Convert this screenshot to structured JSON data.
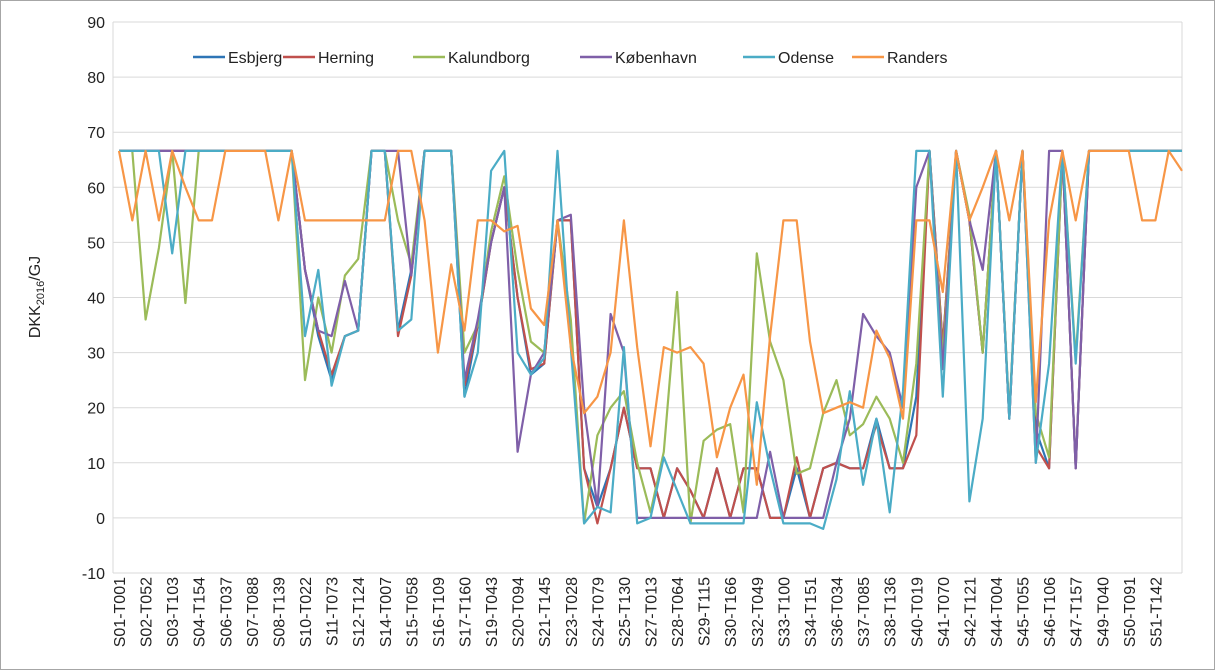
{
  "chart_data": {
    "type": "line",
    "ylabel": {
      "main": "DKK",
      "sub": "2016",
      "suffix": "/GJ"
    },
    "ylim": [
      -10,
      90
    ],
    "yticks": [
      -10,
      0,
      10,
      20,
      30,
      40,
      50,
      60,
      70,
      80,
      90
    ],
    "grid": true,
    "legend": "top",
    "categories": [
      "S01-T001",
      null,
      "S02-T052",
      null,
      "S03-T103",
      null,
      "S04-T154",
      null,
      "S06-T037",
      null,
      "S07-T088",
      null,
      "S08-T139",
      null,
      "S10-T022",
      null,
      "S11-T073",
      null,
      "S12-T124",
      null,
      "S14-T007",
      null,
      "S15-T058",
      null,
      "S16-T109",
      null,
      "S17-T160",
      null,
      "S19-T043",
      null,
      "S20-T094",
      null,
      "S21-T145",
      null,
      "S23-T028",
      null,
      "S24-T079",
      null,
      "S25-T130",
      null,
      "S27-T013",
      null,
      "S28-T064",
      null,
      "S29-T115",
      null,
      "S30-T166",
      null,
      "S32-T049",
      null,
      "S33-T100",
      null,
      "S34-T151",
      null,
      "S36-T034",
      null,
      "S37-T085",
      null,
      "S38-T136",
      null,
      "S40-T019",
      null,
      "S41-T070",
      null,
      "S42-T121",
      null,
      "S44-T004",
      null,
      "S45-T055",
      null,
      "S46-T106",
      null,
      "S47-T157",
      null,
      "S49-T040",
      null,
      "S50-T091",
      null,
      "S51-T142",
      null,
      null
    ],
    "series": [
      {
        "name": "Esbjerg",
        "color": "#2e75b6",
        "values": [
          66.6,
          66.6,
          66.6,
          66.6,
          66.6,
          66.6,
          66.6,
          66.6,
          66.6,
          66.6,
          66.6,
          66.6,
          66.6,
          66.6,
          45,
          33,
          25,
          33,
          34,
          66.6,
          66.6,
          34,
          45,
          66.6,
          66.6,
          66.6,
          22,
          35,
          50,
          60,
          40,
          26,
          28,
          54,
          54,
          9,
          2,
          9,
          20,
          9,
          9,
          0,
          9,
          5,
          0,
          9,
          0,
          9,
          9,
          0,
          0,
          9,
          0,
          9,
          10,
          9,
          9,
          18,
          9,
          9,
          22,
          66.6,
          31,
          66.6,
          54,
          30,
          66.6,
          18,
          66.6,
          16,
          9,
          66.6,
          9,
          66.6,
          66.6,
          66.6,
          66.6,
          66.6,
          66.6,
          66.6,
          66.6
        ]
      },
      {
        "name": "Herning",
        "color": "#c0504d",
        "values": [
          66.6,
          66.6,
          66.6,
          66.6,
          66.6,
          66.6,
          66.6,
          66.6,
          66.6,
          66.6,
          66.6,
          66.6,
          66.6,
          66.6,
          45,
          34,
          26,
          33,
          34,
          66.6,
          66.6,
          33,
          44,
          66.6,
          66.6,
          66.6,
          24,
          35,
          50,
          60,
          40,
          27,
          28,
          54,
          54,
          9,
          -1,
          9,
          20,
          9,
          9,
          0,
          9,
          5,
          0,
          9,
          0,
          9,
          9,
          0,
          0,
          11,
          0,
          9,
          10,
          9,
          9,
          17,
          9,
          9,
          15,
          66.6,
          31,
          66.6,
          54,
          30,
          66.6,
          18,
          66.6,
          13,
          9,
          66.6,
          9,
          66.6,
          66.6,
          66.6,
          66.6,
          66.6,
          66.6,
          66.6,
          66.6
        ]
      },
      {
        "name": "Kalundborg",
        "color": "#9bbb59",
        "values": [
          66.6,
          66.6,
          36,
          49,
          66.6,
          39,
          66.6,
          66.6,
          66.6,
          66.6,
          66.6,
          66.6,
          66.6,
          66.6,
          25,
          40,
          30,
          44,
          47,
          66.6,
          66.6,
          54,
          46,
          66.6,
          66.6,
          66.6,
          30,
          35,
          52,
          62,
          45,
          32,
          30,
          54,
          36,
          -1,
          15,
          20,
          23,
          10,
          1,
          12,
          41,
          -1,
          14,
          16,
          17,
          1,
          48,
          32,
          25,
          8,
          9,
          19,
          25,
          15,
          17,
          22,
          18,
          10,
          28,
          66.6,
          29,
          66.6,
          55,
          30,
          66.6,
          19,
          66.6,
          19,
          11,
          66.6,
          29,
          66.6,
          66.6,
          66.6,
          66.6,
          66.6,
          66.6,
          66.6,
          66.6
        ]
      },
      {
        "name": "København",
        "color": "#7f5fa8",
        "values": [
          66.6,
          66.6,
          66.6,
          66.6,
          66.6,
          66.6,
          66.6,
          66.6,
          66.6,
          66.6,
          66.6,
          66.6,
          66.6,
          66.6,
          45,
          34,
          33,
          43,
          34,
          66.6,
          66.6,
          66.6,
          44,
          66.6,
          66.6,
          66.6,
          25,
          36,
          50,
          60,
          12,
          26,
          30,
          54,
          55,
          20,
          2,
          37,
          30,
          0,
          0,
          0,
          0,
          0,
          0,
          0,
          0,
          0,
          0,
          12,
          0,
          0,
          0,
          0,
          10,
          18,
          37,
          33,
          30,
          20,
          60,
          66.6,
          27,
          66.6,
          54,
          45,
          66.6,
          18,
          66.6,
          10,
          66.6,
          66.6,
          9,
          66.6,
          66.6,
          66.6,
          66.6,
          66.6,
          66.6,
          66.6,
          66.6
        ]
      },
      {
        "name": "Odense",
        "color": "#4bacc6",
        "values": [
          66.6,
          66.6,
          66.6,
          66.6,
          48,
          66.6,
          66.6,
          66.6,
          66.6,
          66.6,
          66.6,
          66.6,
          66.6,
          66.6,
          33,
          45,
          24,
          33,
          34,
          66.6,
          66.6,
          34,
          36,
          66.6,
          66.6,
          66.6,
          22,
          30,
          63,
          66.6,
          30,
          26,
          29,
          66.6,
          31,
          -1,
          2,
          1,
          31,
          -1,
          0,
          11,
          5,
          -1,
          -1,
          -1,
          -1,
          -1,
          21,
          9,
          -1,
          -1,
          -1,
          -2,
          7,
          23,
          6,
          18,
          1,
          23,
          66.6,
          66.6,
          22,
          66.6,
          3,
          18,
          66.6,
          18,
          66.6,
          10,
          28,
          66.6,
          28,
          66.6,
          66.6,
          66.6,
          66.6,
          66.6,
          66.6,
          66.6,
          66.6
        ]
      },
      {
        "name": "Randers",
        "color": "#f79646",
        "values": [
          66.6,
          54,
          66.6,
          54,
          66.6,
          60,
          54,
          54,
          66.6,
          66.6,
          66.6,
          66.6,
          54,
          66.6,
          54,
          54,
          54,
          54,
          54,
          54,
          54,
          66.6,
          66.6,
          54,
          30,
          46,
          34,
          54,
          54,
          52,
          53,
          38,
          35,
          54,
          31,
          19,
          22,
          30,
          54,
          31,
          13,
          31,
          30,
          31,
          28,
          11,
          20,
          26,
          6,
          33,
          54,
          54,
          32,
          19,
          20,
          21,
          20,
          34,
          29,
          18,
          54,
          54,
          41,
          66.6,
          54,
          60,
          66.6,
          54,
          66.6,
          21,
          54,
          66.6,
          54,
          66.6,
          66.6,
          66.6,
          66.6,
          54,
          54,
          66.6,
          63
        ]
      }
    ]
  }
}
